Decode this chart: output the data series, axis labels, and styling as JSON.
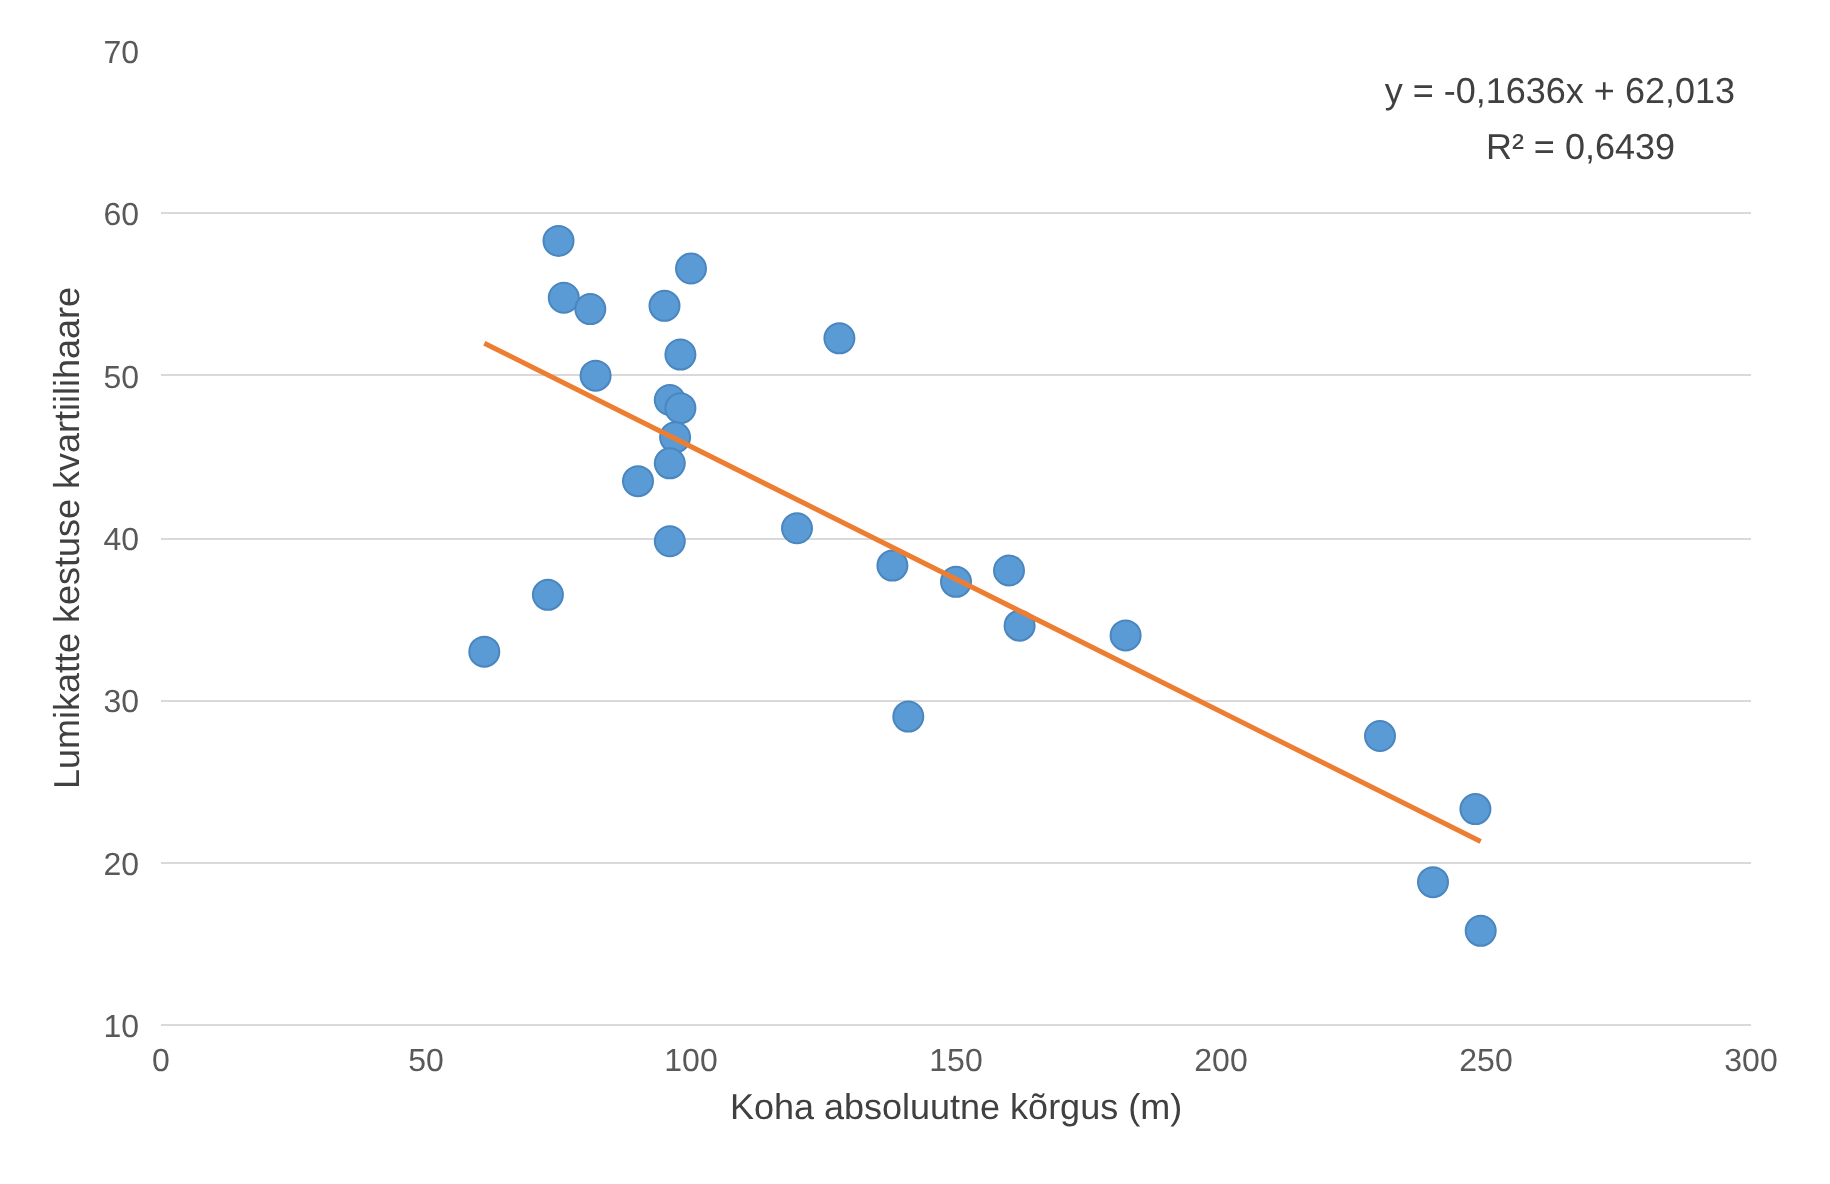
{
  "chart_data": {
    "type": "scatter",
    "xlabel": "Koha absoluutne kõrgus (m)",
    "ylabel": "Lumikatte kestuse kvartiilihaare",
    "xlim": [
      0,
      300
    ],
    "xticks": [
      0,
      50,
      100,
      150,
      200,
      250,
      300
    ],
    "ylim": [
      10,
      70
    ],
    "yticks": [
      10,
      20,
      30,
      40,
      50,
      60,
      70
    ],
    "grid": "y",
    "annotations": [
      "y = -0,1636x + 62,013",
      "R² = 0,6439"
    ],
    "series": [
      {
        "marker": "circle",
        "color": "#5b9bd5",
        "x": [
          61,
          73,
          75,
          76,
          81,
          82,
          90,
          95,
          100,
          98,
          96,
          98,
          97,
          96,
          96,
          128,
          120,
          138,
          141,
          150,
          160,
          162,
          182,
          230,
          240,
          248,
          249
        ],
        "values": [
          33,
          36.5,
          58.3,
          54.8,
          54.1,
          50,
          43.5,
          54.3,
          56.6,
          51.3,
          48.5,
          48,
          46.2,
          44.6,
          39.8,
          52.3,
          40.6,
          38.3,
          29,
          37.3,
          38,
          34.6,
          34,
          27.8,
          18.8,
          23.3,
          15.8
        ]
      },
      {
        "type": "line",
        "color": "#ed7d31",
        "x": [
          61,
          249
        ],
        "values": [
          52,
          21.3
        ]
      }
    ]
  }
}
